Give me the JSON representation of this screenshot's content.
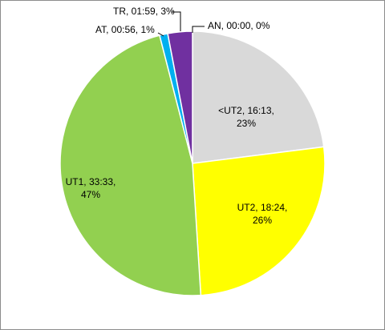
{
  "chart_data": {
    "type": "pie",
    "title": "",
    "start_angle_deg": 0,
    "direction": "clockwise",
    "slices": [
      {
        "name": "AN",
        "duration": "00:00",
        "value": 0,
        "percent": "0%",
        "color": "#c00000"
      },
      {
        "name": "<UT2",
        "duration": "16:13",
        "value": 23,
        "percent": "23%",
        "color": "#d9d9d9"
      },
      {
        "name": "UT2",
        "duration": "18:24",
        "value": 26,
        "percent": "26%",
        "color": "#ffff00"
      },
      {
        "name": "UT1",
        "duration": "33:33",
        "value": 47,
        "percent": "47%",
        "color": "#92d050"
      },
      {
        "name": "AT",
        "duration": "00:56",
        "value": 1,
        "percent": "1%",
        "color": "#00b0f0"
      },
      {
        "name": "TR",
        "duration": "01:59",
        "value": 3,
        "percent": "3%",
        "color": "#7030a0"
      }
    ]
  }
}
